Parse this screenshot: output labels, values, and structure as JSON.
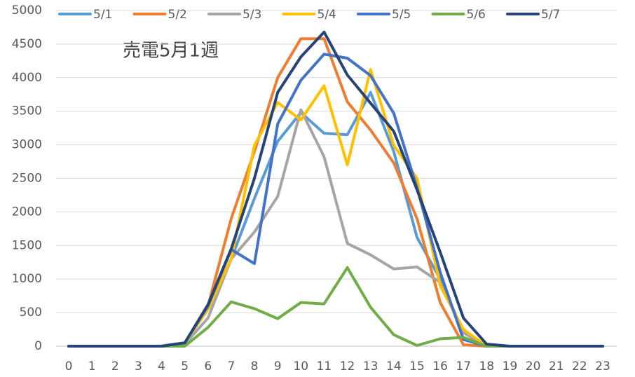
{
  "chart_data": {
    "type": "line",
    "title": "売電5月1週",
    "categories": [
      "0",
      "1",
      "2",
      "3",
      "4",
      "5",
      "6",
      "7",
      "8",
      "9",
      "10",
      "11",
      "12",
      "13",
      "14",
      "15",
      "16",
      "17",
      "18",
      "19",
      "20",
      "21",
      "22",
      "23"
    ],
    "series": [
      {
        "name": "5/1",
        "color": "#5B9BD5",
        "values": [
          0,
          0,
          0,
          0,
          0,
          50,
          550,
          1300,
          2200,
          3050,
          3480,
          3170,
          3150,
          3780,
          2900,
          1620,
          1000,
          200,
          0,
          0,
          0,
          0,
          0,
          0
        ]
      },
      {
        "name": "5/2",
        "color": "#ED7D31",
        "values": [
          0,
          0,
          0,
          0,
          0,
          50,
          600,
          1900,
          2900,
          4000,
          4580,
          4580,
          3640,
          3220,
          2730,
          1900,
          650,
          20,
          0,
          0,
          0,
          0,
          0,
          0
        ]
      },
      {
        "name": "5/3",
        "color": "#A5A5A5",
        "values": [
          0,
          0,
          0,
          0,
          0,
          30,
          420,
          1300,
          1700,
          2230,
          3520,
          2820,
          1530,
          1360,
          1150,
          1180,
          950,
          200,
          0,
          0,
          0,
          0,
          0,
          0
        ]
      },
      {
        "name": "5/4",
        "color": "#FFC000",
        "values": [
          0,
          0,
          0,
          0,
          0,
          50,
          550,
          1300,
          2990,
          3630,
          3370,
          3880,
          2700,
          4120,
          2990,
          2500,
          900,
          250,
          0,
          0,
          0,
          0,
          0,
          0
        ]
      },
      {
        "name": "5/5",
        "color": "#4472C4",
        "values": [
          0,
          0,
          0,
          0,
          0,
          50,
          600,
          1440,
          1230,
          3310,
          3960,
          4350,
          4290,
          4030,
          3470,
          2360,
          1100,
          100,
          0,
          0,
          0,
          0,
          0,
          0
        ]
      },
      {
        "name": "5/6",
        "color": "#70AD47",
        "values": [
          0,
          0,
          0,
          0,
          0,
          0,
          280,
          660,
          560,
          410,
          650,
          630,
          1170,
          580,
          170,
          10,
          110,
          130,
          0,
          0,
          0,
          0,
          0,
          0
        ]
      },
      {
        "name": "5/7",
        "color": "#264478",
        "values": [
          0,
          0,
          0,
          0,
          0,
          50,
          620,
          1450,
          2500,
          3780,
          4310,
          4680,
          4040,
          3620,
          3200,
          2330,
          1400,
          420,
          30,
          0,
          0,
          0,
          0,
          0
        ]
      }
    ],
    "ylim": [
      0,
      5000
    ],
    "yticks": [
      0,
      500,
      1000,
      1500,
      2000,
      2500,
      3000,
      3500,
      4000,
      4500,
      5000
    ],
    "grid": true,
    "legend": "top"
  }
}
